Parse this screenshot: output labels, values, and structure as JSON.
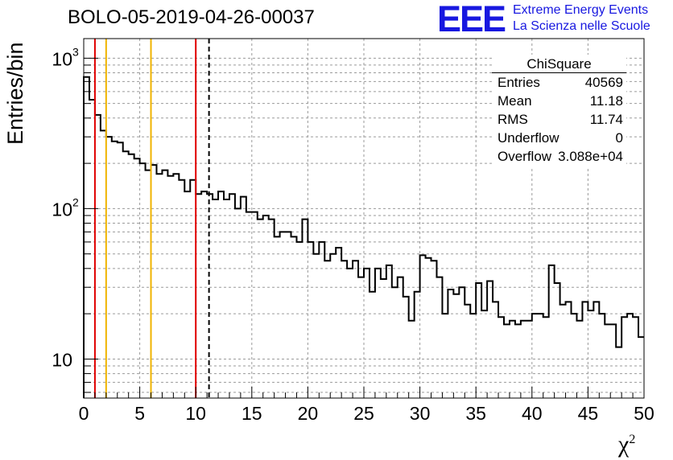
{
  "header": {
    "title": "BOLO-05-2019-04-26-00037",
    "logo_text": "EEE",
    "org_line1": "Extreme Energy Events",
    "org_line2": "La Scienza nelle Scuole"
  },
  "stats_box": {
    "name": "ChiSquare",
    "rows": [
      {
        "label": "Entries",
        "value": "40569"
      },
      {
        "label": "Mean",
        "value": "11.18"
      },
      {
        "label": "RMS",
        "value": "11.74"
      },
      {
        "label": "Underflow",
        "value": "0"
      },
      {
        "label": "Overflow",
        "value": "3.088e+04"
      }
    ]
  },
  "colors": {
    "logo": "#1818e0",
    "red_cut": "#e00000",
    "yellow_cut": "#f0b400",
    "grid": "#9a9a9a"
  },
  "chart_data": {
    "type": "histogram",
    "title": "BOLO-05-2019-04-26-00037",
    "xlabel": "χ",
    "xlabel_sup": "2",
    "ylabel": "Entries/bin",
    "xlim": [
      0,
      50
    ],
    "ylim": [
      5.5,
      1350
    ],
    "yscale": "log",
    "bin_width": 0.5,
    "xticks": [
      0,
      5,
      10,
      15,
      20,
      25,
      30,
      35,
      40,
      45,
      50
    ],
    "yticks": [
      {
        "value": 10,
        "label": "10",
        "sup": ""
      },
      {
        "value": 100,
        "label": "10",
        "sup": "2"
      },
      {
        "value": 1000,
        "label": "10",
        "sup": "3"
      }
    ],
    "grid": true,
    "values": [
      750,
      530,
      420,
      330,
      300,
      280,
      275,
      240,
      230,
      215,
      200,
      180,
      195,
      170,
      180,
      165,
      170,
      155,
      130,
      155,
      125,
      130,
      125,
      115,
      130,
      115,
      125,
      100,
      120,
      95,
      95,
      85,
      90,
      85,
      65,
      70,
      70,
      65,
      60,
      85,
      60,
      50,
      60,
      45,
      50,
      55,
      45,
      40,
      45,
      35,
      40,
      28,
      40,
      34,
      42,
      30,
      35,
      26,
      18,
      28,
      49,
      47,
      45,
      35,
      20,
      29,
      27,
      30,
      23,
      20,
      32,
      21,
      33,
      24,
      19,
      17,
      18,
      17,
      18,
      18,
      20,
      20,
      19,
      42,
      32,
      23,
      24,
      20,
      18,
      24,
      21,
      24,
      20,
      17,
      17,
      12,
      19,
      20,
      19,
      14
    ],
    "vlines": [
      {
        "x": 1,
        "color": "red",
        "style": "solid"
      },
      {
        "x": 2,
        "color": "yellow",
        "style": "solid"
      },
      {
        "x": 6,
        "color": "yellow",
        "style": "solid"
      },
      {
        "x": 10,
        "color": "red",
        "style": "solid"
      },
      {
        "x": 11.18,
        "color": "black",
        "style": "dashed"
      }
    ]
  }
}
